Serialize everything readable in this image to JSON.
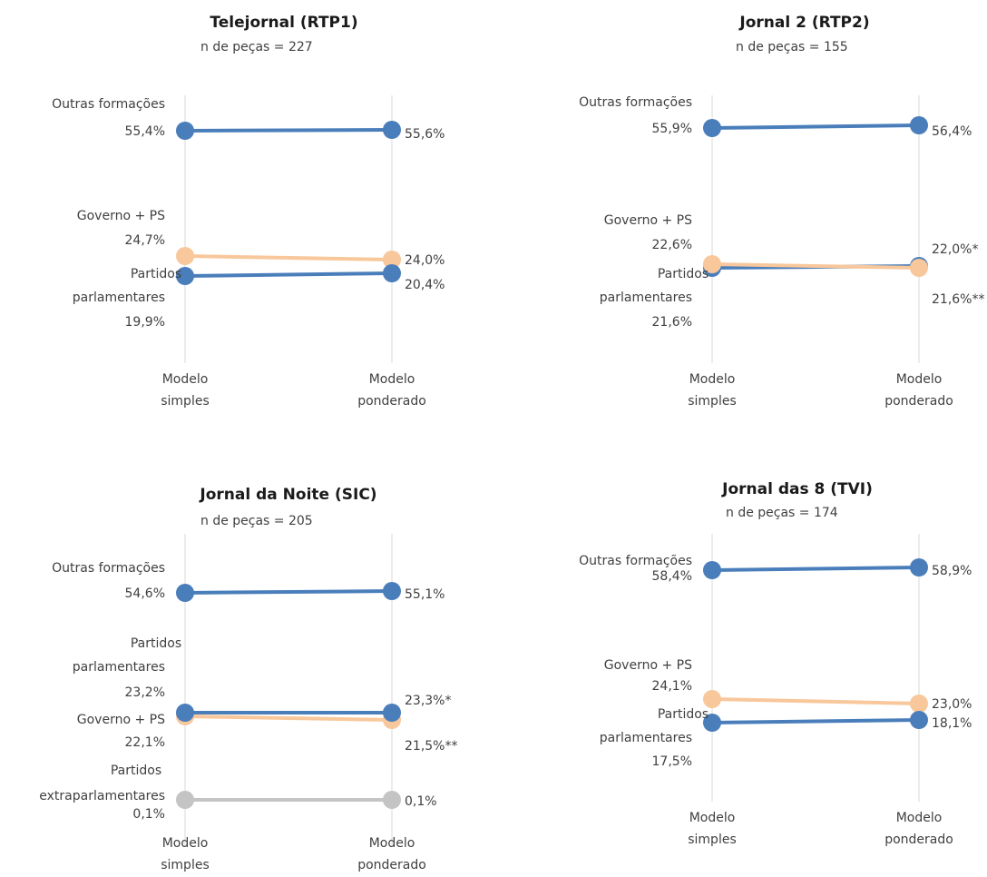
{
  "colors": {
    "Outras formações": "#4a7ebb",
    "Partidos parlamentares": "#4a7ebb",
    "Governo + PS": "#f8c79b",
    "Partidos extraparlamentares": "#c4c4c4"
  },
  "chart_data": [
    {
      "type": "line",
      "title": "Telejornal (RTP1)",
      "subtitle": "n de peças = 227",
      "categories": [
        "Modelo simples",
        "Modelo ponderado"
      ],
      "series": [
        {
          "name": "Outras formações",
          "values": [
            55.4,
            55.6
          ],
          "value_labels": [
            "55,4%",
            "55,6%"
          ],
          "color": "#4a7ebb"
        },
        {
          "name": "Governo + PS",
          "values": [
            24.7,
            24.0
          ],
          "value_labels": [
            "24,7%",
            "24,0%"
          ],
          "color": "#f8c79b"
        },
        {
          "name": "Partidos parlamentares",
          "values": [
            19.9,
            20.4
          ],
          "value_labels": [
            "19,9%",
            "20,4%"
          ],
          "color": "#4a7ebb"
        }
      ]
    },
    {
      "type": "line",
      "title": "Jornal 2 (RTP2)",
      "subtitle": "n de peças = 155",
      "categories": [
        "Modelo simples",
        "Modelo ponderado"
      ],
      "series": [
        {
          "name": "Outras formações",
          "values": [
            55.9,
            56.4
          ],
          "value_labels": [
            "55,9%",
            "56,4%"
          ],
          "color": "#4a7ebb"
        },
        {
          "name": "Partidos parlamentares",
          "values": [
            21.6,
            22.0
          ],
          "value_labels": [
            "21,6%",
            "22,0%*"
          ],
          "color": "#4a7ebb"
        },
        {
          "name": "Governo + PS",
          "values": [
            22.6,
            21.6
          ],
          "value_labels": [
            "22,6%",
            "21,6%**"
          ],
          "color": "#f8c79b"
        }
      ]
    },
    {
      "type": "line",
      "title": "Jornal da Noite (SIC)",
      "subtitle": "n de peças = 205",
      "categories": [
        "Modelo simples",
        "Modelo ponderado"
      ],
      "series": [
        {
          "name": "Outras formações",
          "values": [
            54.6,
            55.1
          ],
          "value_labels": [
            "54,6%",
            "55,1%"
          ],
          "color": "#4a7ebb"
        },
        {
          "name": "Governo + PS",
          "values": [
            22.1,
            21.5
          ],
          "value_labels": [
            "22,1%",
            "21,5%**"
          ],
          "color": "#f8c79b"
        },
        {
          "name": "Partidos parlamentares",
          "values": [
            23.2,
            23.3
          ],
          "value_labels": [
            "23,2%",
            "23,3%*"
          ],
          "color": "#4a7ebb"
        },
        {
          "name": "Partidos extraparlamentares",
          "values": [
            0.1,
            0.1
          ],
          "value_labels": [
            "0,1%",
            "0,1%"
          ],
          "color": "#c4c4c4"
        }
      ]
    },
    {
      "type": "line",
      "title": "Jornal das 8 (TVI)",
      "subtitle": "n de peças = 174",
      "categories": [
        "Modelo simples",
        "Modelo ponderado"
      ],
      "series": [
        {
          "name": "Outras formações",
          "values": [
            58.4,
            58.9
          ],
          "value_labels": [
            "58,4%",
            "58,9%"
          ],
          "color": "#4a7ebb"
        },
        {
          "name": "Governo + PS",
          "values": [
            24.1,
            23.0
          ],
          "value_labels": [
            "24,1%",
            "23,0%"
          ],
          "color": "#f8c79b"
        },
        {
          "name": "Partidos parlamentares",
          "values": [
            17.5,
            18.1
          ],
          "value_labels": [
            "17,5%",
            "18,1%"
          ],
          "color": "#4a7ebb"
        }
      ]
    }
  ]
}
